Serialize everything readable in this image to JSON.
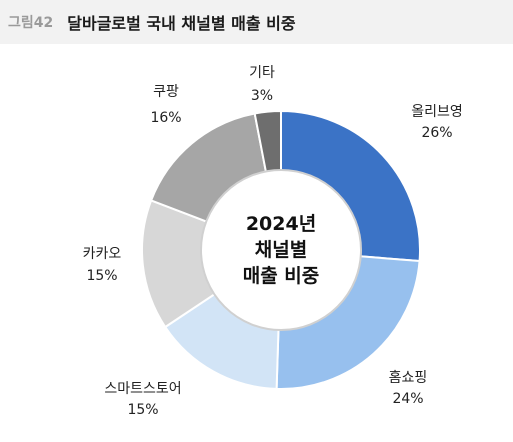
{
  "header": {
    "figure_label": "그림42",
    "title": "달바글로벌 국내 채널별 매출 비중"
  },
  "chart_data": {
    "type": "pie",
    "center_text": [
      "2024년",
      "채널별",
      "매출 비중"
    ],
    "slices": [
      {
        "label": "올리브영",
        "value": 26,
        "value_text": "26%",
        "color": "#3b73c6"
      },
      {
        "label": "홈쇼핑",
        "value": 24,
        "value_text": "24%",
        "color": "#97c0ee"
      },
      {
        "label": "스마트스토어",
        "value": 15,
        "value_text": "15%",
        "color": "#d2e4f6"
      },
      {
        "label": "카카오",
        "value": 15,
        "value_text": "15%",
        "color": "#d7d7d7"
      },
      {
        "label": "쿠팡",
        "value": 16,
        "value_text": "16%",
        "color": "#a6a6a6"
      },
      {
        "label": "기타",
        "value": 3,
        "value_text": "3%",
        "color": "#6e6e6e"
      }
    ]
  }
}
